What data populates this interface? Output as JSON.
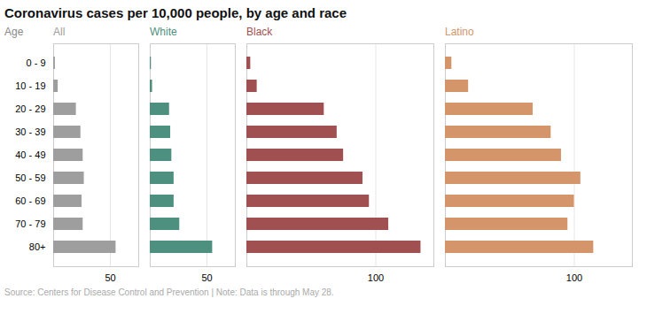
{
  "title": "Coronavirus cases per 10,000 people, by age and race",
  "caption": "Source: Centers for Disease Control and Prevention | Note: Data is through May 28.",
  "chart_data": [
    {
      "type": "bar",
      "orientation": "horizontal",
      "title": "All",
      "ylabel": "Age",
      "categories": [
        "0 - 9",
        "10 - 19",
        "20 - 29",
        "30 - 39",
        "40 - 49",
        "50 - 59",
        "60 - 69",
        "70 - 79",
        "80+"
      ],
      "values": [
        1.5,
        4,
        20,
        24,
        26,
        27,
        25,
        26,
        55
      ],
      "color": "#9e9e9e",
      "xlim": [
        0,
        75
      ],
      "xticks": [
        50
      ],
      "grid": true,
      "tick_labels": true
    },
    {
      "type": "bar",
      "orientation": "horizontal",
      "title": "White",
      "categories": [
        "0 - 9",
        "10 - 19",
        "20 - 29",
        "30 - 39",
        "40 - 49",
        "50 - 59",
        "60 - 69",
        "70 - 79",
        "80+"
      ],
      "values": [
        1,
        2,
        17,
        18,
        19,
        21,
        21,
        26,
        55
      ],
      "color": "#4e9080",
      "xlim": [
        0,
        75
      ],
      "xticks": [
        50
      ],
      "grid": true,
      "tick_labels": "x"
    },
    {
      "type": "bar",
      "orientation": "horizontal",
      "title": "Black",
      "categories": [
        "0 - 9",
        "10 - 19",
        "20 - 29",
        "30 - 39",
        "40 - 49",
        "50 - 59",
        "60 - 69",
        "70 - 79",
        "80+"
      ],
      "values": [
        3,
        8,
        60,
        70,
        75,
        90,
        95,
        110,
        135
      ],
      "color": "#a05050",
      "xlim": [
        0,
        145
      ],
      "xticks": [
        100
      ],
      "grid": true,
      "tick_labels": "x"
    },
    {
      "type": "bar",
      "orientation": "horizontal",
      "title": "Latino",
      "categories": [
        "0 - 9",
        "10 - 19",
        "20 - 29",
        "30 - 39",
        "40 - 49",
        "50 - 59",
        "60 - 69",
        "70 - 79",
        "80+"
      ],
      "values": [
        5,
        18,
        68,
        82,
        90,
        105,
        100,
        95,
        115
      ],
      "color": "#d4956a",
      "xlim": [
        0,
        145
      ],
      "xticks": [
        100
      ],
      "grid": true,
      "tick_labels": "x"
    }
  ]
}
